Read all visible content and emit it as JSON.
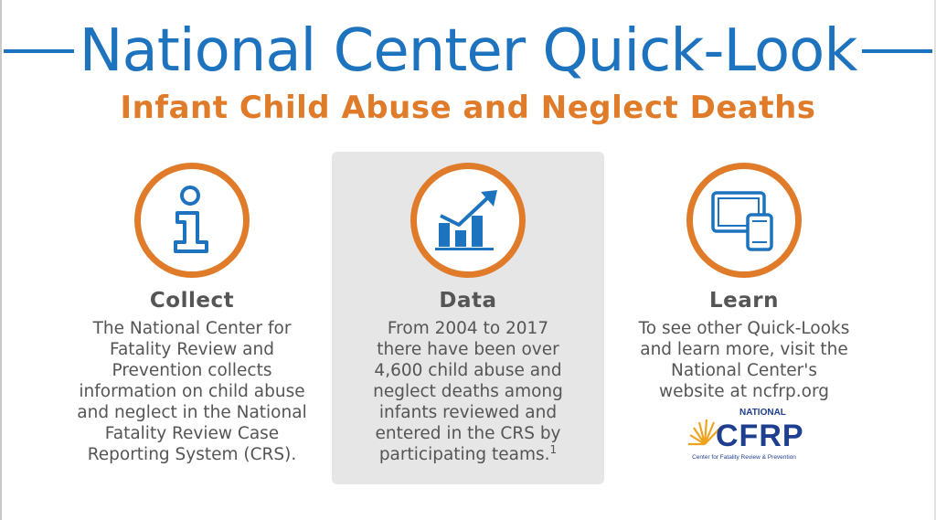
{
  "header": {
    "title": "National Center Quick-Look",
    "subtitle": "Infant Child Abuse and Neglect Deaths"
  },
  "columns": [
    {
      "icon": "info-icon",
      "heading": "Collect",
      "body": "The National Center for Fatality Review and Prevention collects information on child abuse and neglect in the National Fatality Review Case Reporting System (CRS)."
    },
    {
      "icon": "bar-chart-trend-icon",
      "heading": "Data",
      "body": "From 2004 to 2017 there have been over 4,600 child abuse and neglect deaths among infants reviewed and entered in the CRS by participating teams.",
      "footnote": "1"
    },
    {
      "icon": "devices-icon",
      "heading": "Learn",
      "body": "To see other Quick-Looks and learn more, visit the National Center's website at ncfrp.org"
    }
  ],
  "logo": {
    "top_text": "NATIONAL",
    "main_text": "CFRP",
    "tagline": "Center for Fatality Review & Prevention"
  },
  "colors": {
    "title_blue": "#1e73be",
    "accent_orange": "#e07b2a",
    "body_gray": "#555555",
    "panel_gray": "#e6e6e6"
  }
}
